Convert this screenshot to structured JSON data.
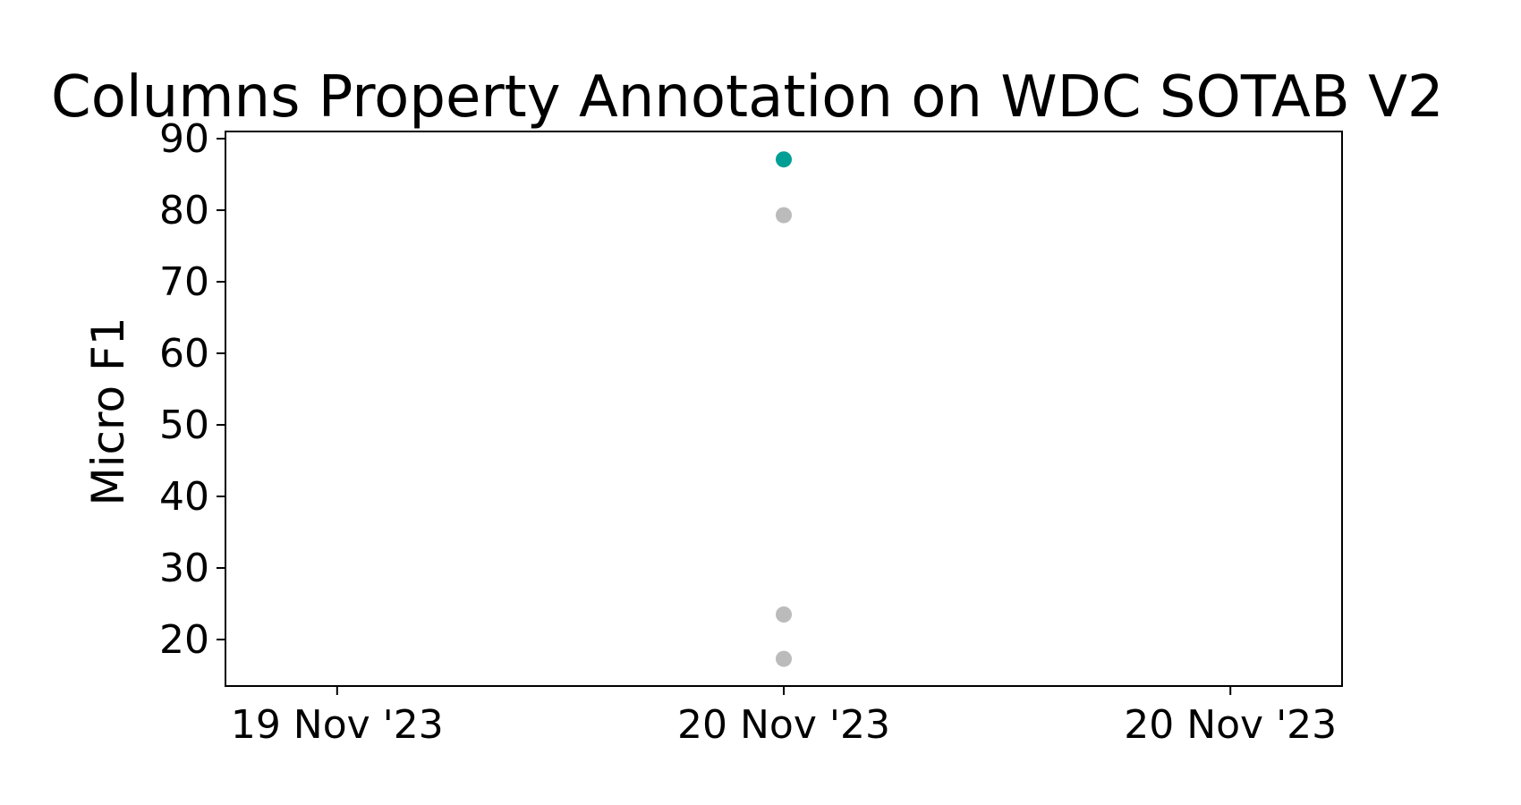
{
  "chart_data": {
    "type": "scatter",
    "title": "Columns Property Annotation on WDC SOTAB V2",
    "xlabel": "",
    "ylabel": "Micro F1",
    "x_ticks": [
      {
        "value": "2023-11-19T12:00",
        "label": "19 Nov '23"
      },
      {
        "value": "2023-11-20T00:00",
        "label": "20 Nov '23"
      },
      {
        "value": "2023-11-20T12:00",
        "label": "20 Nov '23"
      }
    ],
    "xlim": [
      "2023-11-19T09:00",
      "2023-11-20T15:00"
    ],
    "y_ticks": [
      20,
      30,
      40,
      50,
      60,
      70,
      80,
      90
    ],
    "ylim": [
      13.5,
      91
    ],
    "grid": false,
    "points": [
      {
        "x": "2023-11-20T00:00",
        "y": 87.1,
        "color": "#009e94"
      },
      {
        "x": "2023-11-20T00:00",
        "y": 79.3,
        "color": "#bbbbbb"
      },
      {
        "x": "2023-11-20T00:00",
        "y": 23.5,
        "color": "#bbbbbb"
      },
      {
        "x": "2023-11-20T00:00",
        "y": 17.3,
        "color": "#bbbbbb"
      }
    ]
  }
}
